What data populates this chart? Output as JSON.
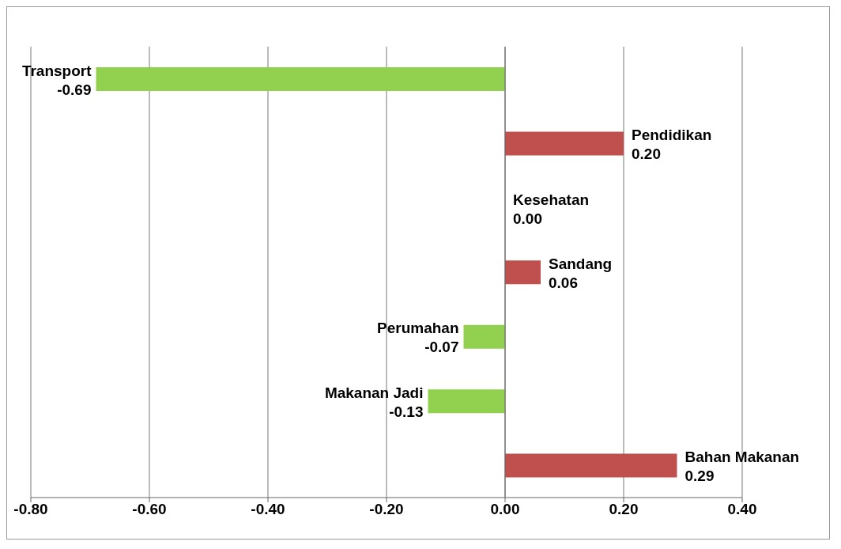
{
  "chart_data": {
    "type": "bar",
    "orientation": "horizontal",
    "categories": [
      "Transport",
      "Pendidikan",
      "Kesehatan",
      "Sandang",
      "Perumahan",
      "Makanan Jadi",
      "Bahan Makanan"
    ],
    "values": [
      -0.69,
      0.2,
      0.0,
      0.06,
      -0.07,
      -0.13,
      0.29
    ],
    "colors": [
      "#92d050",
      "#c0504d",
      "#c0504d",
      "#c0504d",
      "#92d050",
      "#92d050",
      "#c0504d"
    ],
    "value_labels": [
      "-0.69",
      "0.20",
      "0.00",
      "0.06",
      "-0.07",
      "-0.13",
      "0.29"
    ],
    "xlim": [
      -0.8,
      0.4
    ],
    "xticks": [
      {
        "value": -0.8,
        "label": "-0.80"
      },
      {
        "value": -0.6,
        "label": "-0.60"
      },
      {
        "value": -0.4,
        "label": "-0.40"
      },
      {
        "value": -0.2,
        "label": "-0.20"
      },
      {
        "value": 0,
        "label": "0.00"
      },
      {
        "value": 0.2,
        "label": "0.20"
      },
      {
        "value": 0.4,
        "label": "0.40"
      }
    ],
    "grid": "x",
    "legend": false
  }
}
